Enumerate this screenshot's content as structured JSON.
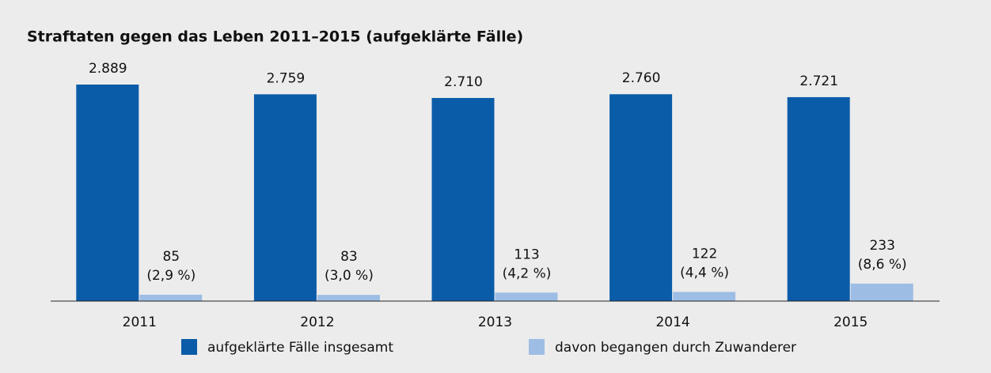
{
  "chart_data": {
    "type": "bar",
    "title": "Straftaten gegen das Leben 2011–2015 (aufgeklärte Fälle)",
    "categories": [
      "2011",
      "2012",
      "2013",
      "2014",
      "2015"
    ],
    "series": [
      {
        "name": "aufgeklärte Fälle insgesamt",
        "color": "#0b5ca8",
        "values": [
          2889,
          2759,
          2710,
          2760,
          2721
        ],
        "value_labels": [
          "2.889",
          "2.759",
          "2.710",
          "2.760",
          "2.721"
        ]
      },
      {
        "name": "davon begangen durch Zuwanderer",
        "color": "#9dbde4",
        "values": [
          85,
          83,
          113,
          122,
          233
        ],
        "share_labels": [
          "(2,9 %)",
          "(3,0 %)",
          "(4,2 %)",
          "(4,4 %)",
          "(8,6 %)"
        ]
      }
    ]
  }
}
